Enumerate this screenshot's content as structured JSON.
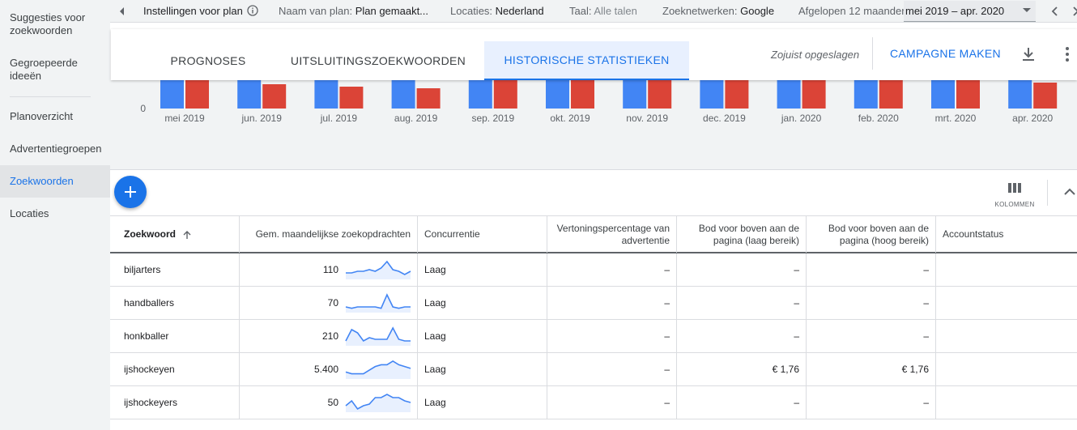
{
  "sidebar": {
    "items": [
      {
        "label": "Suggesties voor zoekwoorden",
        "active": false
      },
      {
        "label": "Gegroepeerde ideeën",
        "active": false
      },
      {
        "label": "Planoverzicht",
        "active": false
      },
      {
        "label": "Advertentiegroepen",
        "active": false
      },
      {
        "label": "Zoekwoorden",
        "active": true
      },
      {
        "label": "Locaties",
        "active": false
      }
    ]
  },
  "topbar": {
    "settings_label": "Instellingen voor plan",
    "plan_name_label": "Naam van plan:",
    "plan_name_value": "Plan gemaakt...",
    "locations_label": "Locaties:",
    "locations_value": "Nederland",
    "language_label": "Taal:",
    "language_value": "Alle talen",
    "networks_label": "Zoeknetwerken:",
    "networks_value": "Google",
    "period_label": "Afgelopen 12 maanden",
    "period_value": "mei 2019 – apr. 2020"
  },
  "tabs": [
    {
      "label": "PROGNOSES",
      "active": false
    },
    {
      "label": "UITSLUITINGSZOEKWOORDEN",
      "active": false
    },
    {
      "label": "HISTORISCHE STATISTIEKEN",
      "active": true
    }
  ],
  "header": {
    "saved_status": "Zojuist opgeslagen",
    "campaign_button": "CAMPAGNE MAKEN"
  },
  "chart_data": {
    "type": "bar",
    "categories": [
      "mei 2019",
      "jun. 2019",
      "jul. 2019",
      "aug. 2019",
      "sep. 2019",
      "okt. 2019",
      "nov. 2019",
      "dec. 2019",
      "jan. 2020",
      "feb. 2020",
      "mrt. 2020",
      "apr. 2020"
    ],
    "y_tick_label": "0",
    "series": [
      {
        "color": "#4285f4",
        "values": [
          45,
          45,
          45,
          45,
          45,
          45,
          45,
          45,
          45,
          45,
          45,
          45
        ]
      },
      {
        "color": "#db4437",
        "values": [
          35,
          30,
          27,
          25,
          35,
          35,
          35,
          35,
          35,
          35,
          35,
          32
        ]
      }
    ],
    "colors": {
      "series_1": "#4285f4",
      "series_2": "#db4437"
    }
  },
  "toolbar": {
    "columns_label": "KOLOMMEN"
  },
  "table": {
    "headers": {
      "keyword": "Zoekwoord",
      "monthly_searches": "Gem. maandelijkse zoekopdrachten",
      "competition": "Concurrentie",
      "impression_share": "Vertoningspercentage van advertentie",
      "bid_low": "Bod voor boven aan de pagina (laag bereik)",
      "bid_high": "Bod voor boven aan de pagina (hoog bereik)",
      "account_status": "Accountstatus"
    },
    "rows": [
      {
        "keyword": "biljarters",
        "searches": "110",
        "competition": "Laag",
        "impression_share": "–",
        "bid_low": "–",
        "bid_high": "–",
        "account_status": "",
        "trend": [
          3,
          3,
          4,
          4,
          5,
          4,
          6,
          10,
          5,
          4,
          2,
          4
        ]
      },
      {
        "keyword": "handballers",
        "searches": "70",
        "competition": "Laag",
        "impression_share": "–",
        "bid_low": "–",
        "bid_high": "–",
        "account_status": "",
        "trend": [
          3,
          2,
          3,
          3,
          3,
          3,
          2,
          12,
          3,
          2,
          3,
          3
        ]
      },
      {
        "keyword": "honkballer",
        "searches": "210",
        "competition": "Laag",
        "impression_share": "–",
        "bid_low": "–",
        "bid_high": "–",
        "account_status": "",
        "trend": [
          2,
          9,
          7,
          2,
          4,
          3,
          3,
          3,
          10,
          3,
          2,
          2
        ]
      },
      {
        "keyword": "ijshockeyen",
        "searches": "5.400",
        "competition": "Laag",
        "impression_share": "–",
        "bid_low": "€ 1,76",
        "bid_high": "€ 1,76",
        "account_status": "",
        "trend": [
          3,
          2,
          2,
          2,
          4,
          6,
          7,
          7,
          9,
          7,
          6,
          5
        ]
      },
      {
        "keyword": "ijshockeyers",
        "searches": "50",
        "competition": "Laag",
        "impression_share": "–",
        "bid_low": "–",
        "bid_high": "–",
        "account_status": "",
        "trend": [
          3,
          6,
          1,
          3,
          4,
          8,
          8,
          10,
          8,
          8,
          6,
          5
        ]
      }
    ]
  }
}
